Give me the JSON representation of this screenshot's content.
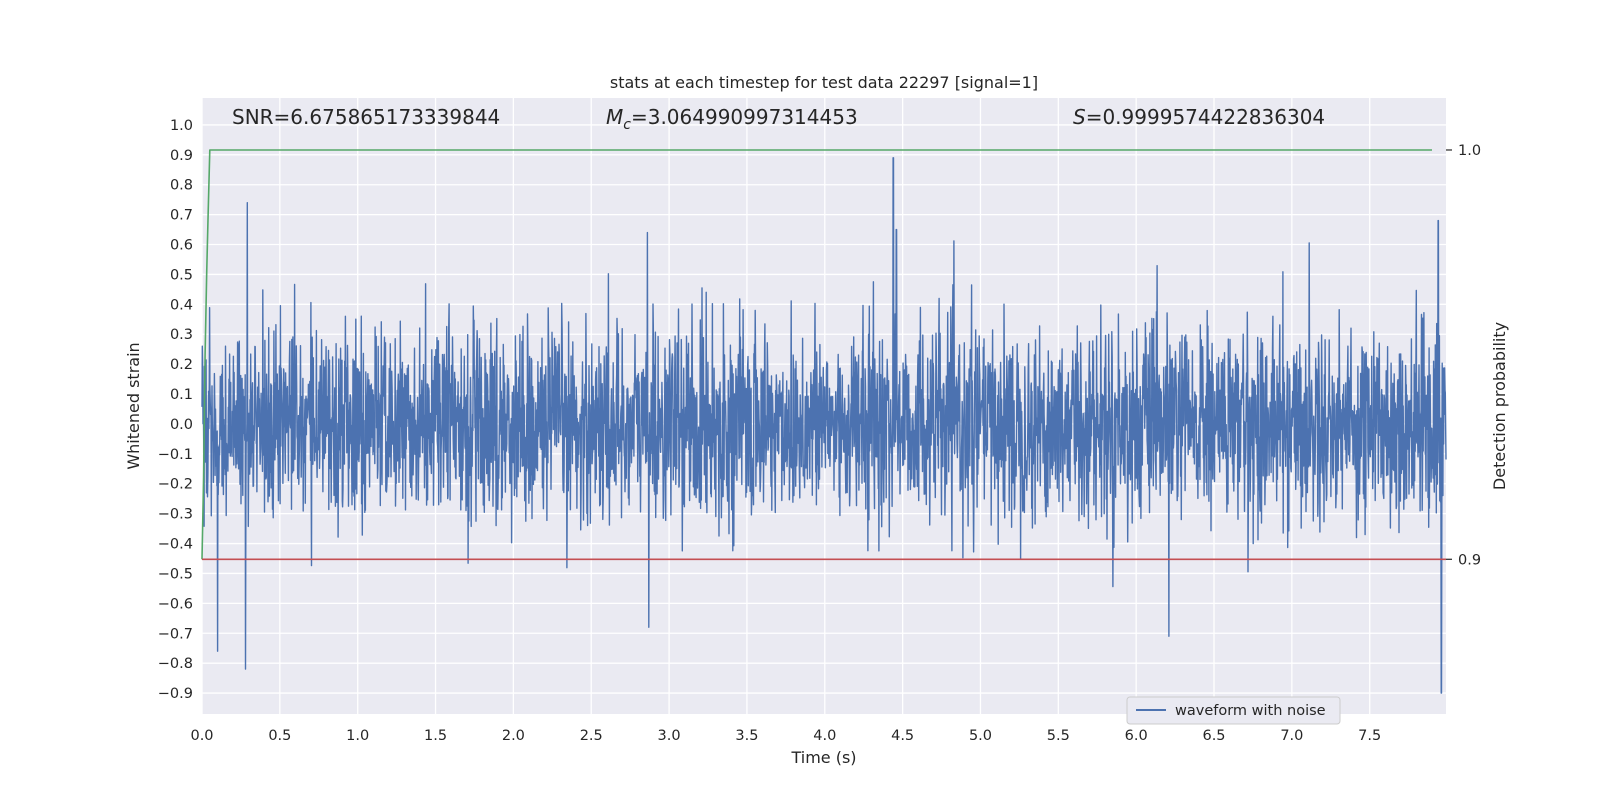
{
  "chart_data": {
    "type": "line",
    "title": "stats at each timestep for test data 22297 [signal=1]",
    "xlabel": "Time (s)",
    "ylabel": "Whitened strain",
    "ylabel_right": "Detection probability",
    "xlim": [
      0.0,
      7.99
    ],
    "ylim": [
      -0.97,
      1.09
    ],
    "ylim_right": [
      0.8622,
      1.0127
    ],
    "x_ticks": [
      "0.0",
      "0.5",
      "1.0",
      "1.5",
      "2.0",
      "2.5",
      "3.0",
      "3.5",
      "4.0",
      "4.5",
      "5.0",
      "5.5",
      "6.0",
      "6.5",
      "7.0",
      "7.5"
    ],
    "y_ticks": [
      "1.0",
      "0.9",
      "0.8",
      "0.7",
      "0.6",
      "0.5",
      "0.4",
      "0.3",
      "0.2",
      "0.1",
      "0.0",
      "−0.1",
      "−0.2",
      "−0.3",
      "−0.4",
      "−0.5",
      "−0.6",
      "−0.7",
      "−0.8",
      "−0.9"
    ],
    "y_ticks_right": [
      "1.0",
      "0.9"
    ],
    "grid": true,
    "annotations": {
      "snr": "SNR=6.675865173339844",
      "mc_symbol": "M",
      "mc_sub": "c",
      "mc_value": "=3.064990997314453",
      "s_symbol": "S",
      "s_value": "=0.9999574422836304"
    },
    "legend": {
      "position": "lower-right",
      "entries": [
        "waveform with noise"
      ]
    },
    "series": [
      {
        "name": "waveform with noise",
        "axis": "left",
        "color": "#4c72b0",
        "kind": "noise",
        "approx_std": 0.16,
        "min": -0.9,
        "max": 0.89,
        "notable_peaks": [
          [
            0.29,
            0.74
          ],
          [
            0.1,
            -0.76
          ],
          [
            0.28,
            -0.82
          ],
          [
            2.86,
            0.64
          ],
          [
            2.87,
            -0.68
          ],
          [
            4.44,
            0.89
          ],
          [
            4.46,
            0.65
          ],
          [
            6.21,
            -0.71
          ],
          [
            7.94,
            0.68
          ],
          [
            7.96,
            -0.9
          ]
        ]
      },
      {
        "axis": "right",
        "color": "#55a868",
        "x": [
          0.0,
          0.01,
          0.02,
          0.03,
          0.04,
          0.05,
          0.06,
          7.9
        ],
        "y": [
          0.9,
          0.92,
          0.95,
          0.97,
          0.985,
          1.0,
          1.0,
          1.0
        ]
      },
      {
        "axis": "right",
        "color": "#c44e52",
        "x": [
          0.0,
          7.99
        ],
        "y": [
          0.9,
          0.9
        ]
      }
    ]
  }
}
